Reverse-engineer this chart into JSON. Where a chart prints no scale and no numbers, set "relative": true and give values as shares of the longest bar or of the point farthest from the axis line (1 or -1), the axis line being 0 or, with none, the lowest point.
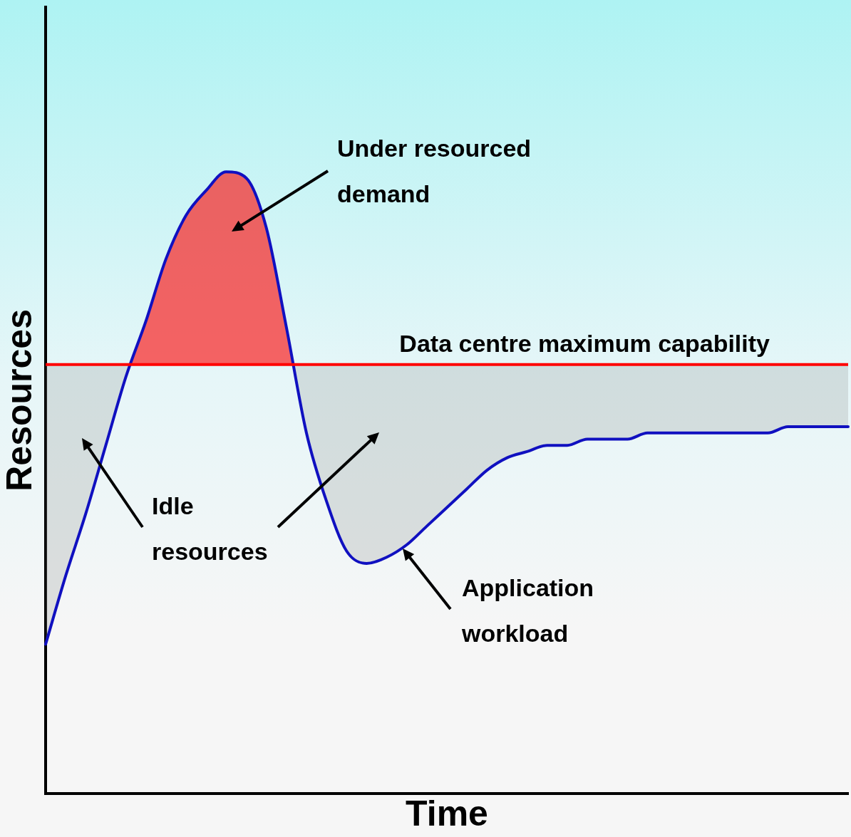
{
  "chart_data": {
    "type": "line",
    "xlabel": "Time",
    "ylabel": "Resources",
    "relative": true,
    "grid": false,
    "legend": false,
    "marker": "none",
    "categories": [
      null,
      null,
      null,
      null,
      null,
      null,
      null,
      null,
      null,
      null,
      null,
      null,
      null,
      null,
      null,
      null,
      null,
      null,
      null,
      null,
      null,
      null,
      null,
      null,
      null,
      null,
      null,
      null,
      null,
      null,
      null,
      null,
      null,
      null,
      null,
      null,
      null,
      null,
      null,
      null,
      null
    ],
    "series": [
      {
        "color": "#1010c0",
        "values": [
          0.24,
          0.35,
          0.45,
          0.56,
          0.67,
          0.76,
          0.86,
          0.93,
          0.97,
          1.0,
          0.99,
          0.91,
          0.75,
          0.58,
          0.47,
          0.39,
          0.37,
          0.38,
          0.4,
          0.43,
          0.46,
          0.49,
          0.52,
          0.54,
          0.55,
          0.56,
          0.56,
          0.57,
          0.57,
          0.57,
          0.58,
          0.58,
          0.58,
          0.58,
          0.58,
          0.58,
          0.58,
          0.59,
          0.59,
          0.59,
          0.59
        ]
      }
    ],
    "ref_lines": [
      {
        "axis": "y",
        "value": 0.69,
        "label": "Data centre maximum capability",
        "color": "#ff0000"
      }
    ],
    "annotations": [
      "Under resourced demand",
      "Idle resources",
      "Application workload"
    ]
  }
}
